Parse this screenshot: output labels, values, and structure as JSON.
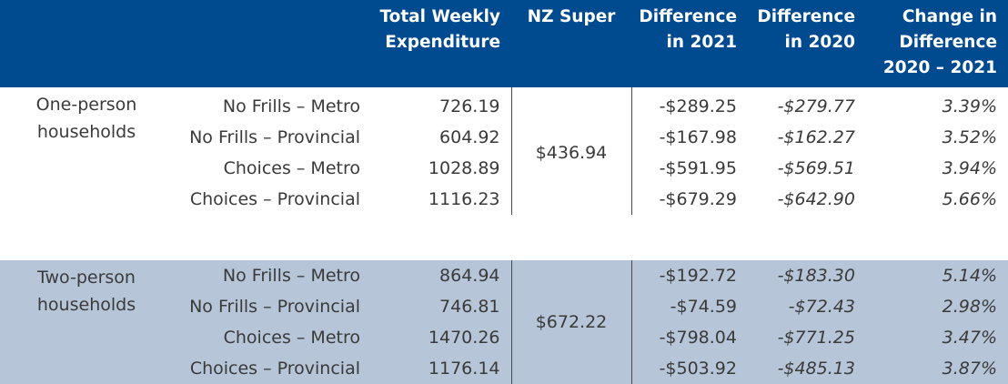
{
  "headers": {
    "group": "",
    "type": "",
    "total": "Total Weekly Expenditure",
    "nzsuper": "NZ Super",
    "diff2021": "Difference in 2021",
    "diff2020": "Difference in 2020",
    "change": "Change in Difference 2020 – 2021"
  },
  "groups": [
    {
      "label": "One-person households",
      "nz_super": "$436.94",
      "rows": [
        {
          "type": "No Frills – Metro",
          "total": "726.19",
          "diff2021": "-$289.25",
          "diff2020": "-$279.77",
          "change": "3.39%"
        },
        {
          "type": "No Frills – Provincial",
          "total": "604.92",
          "diff2021": "-$167.98",
          "diff2020": "-$162.27",
          "change": "3.52%"
        },
        {
          "type": "Choices – Metro",
          "total": "1028.89",
          "diff2021": "-$591.95",
          "diff2020": "-$569.51",
          "change": "3.94%"
        },
        {
          "type": "Choices – Provincial",
          "total": "1116.23",
          "diff2021": "-$679.29",
          "diff2020": "-$642.90",
          "change": "5.66%"
        }
      ]
    },
    {
      "label": "Two-person households",
      "nz_super": "$672.22",
      "rows": [
        {
          "type": "No Frills – Metro",
          "total": "864.94",
          "diff2021": "-$192.72",
          "diff2020": "-$183.30",
          "change": "5.14%"
        },
        {
          "type": "No Frills – Provincial",
          "total": "746.81",
          "diff2021": "-$74.59",
          "diff2020": "-$72.43",
          "change": "2.98%"
        },
        {
          "type": "Choices – Metro",
          "total": "1470.26",
          "diff2021": "-$798.04",
          "diff2020": "-$771.25",
          "change": "3.47%"
        },
        {
          "type": "Choices – Provincial",
          "total": "1176.14",
          "diff2021": "-$503.92",
          "diff2020": "-$485.13",
          "change": "3.87%"
        }
      ]
    }
  ]
}
